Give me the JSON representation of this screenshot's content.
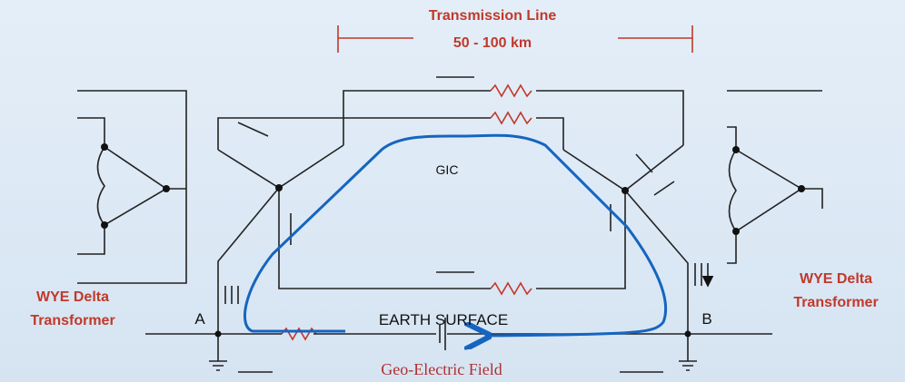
{
  "diagram": {
    "transmission_line": {
      "title": "Transmission Line",
      "length": "50 - 100 km"
    },
    "gic_label": "GIC",
    "left_transformer": {
      "line1": "WYE Delta",
      "line2": "Transformer"
    },
    "right_transformer": {
      "line1": "WYE Delta",
      "line2": "Transformer"
    },
    "node_a": "A",
    "node_b": "B",
    "earth_surface": "EARTH SURFACE",
    "geo_electric_field": "Geo-Electric Field"
  }
}
